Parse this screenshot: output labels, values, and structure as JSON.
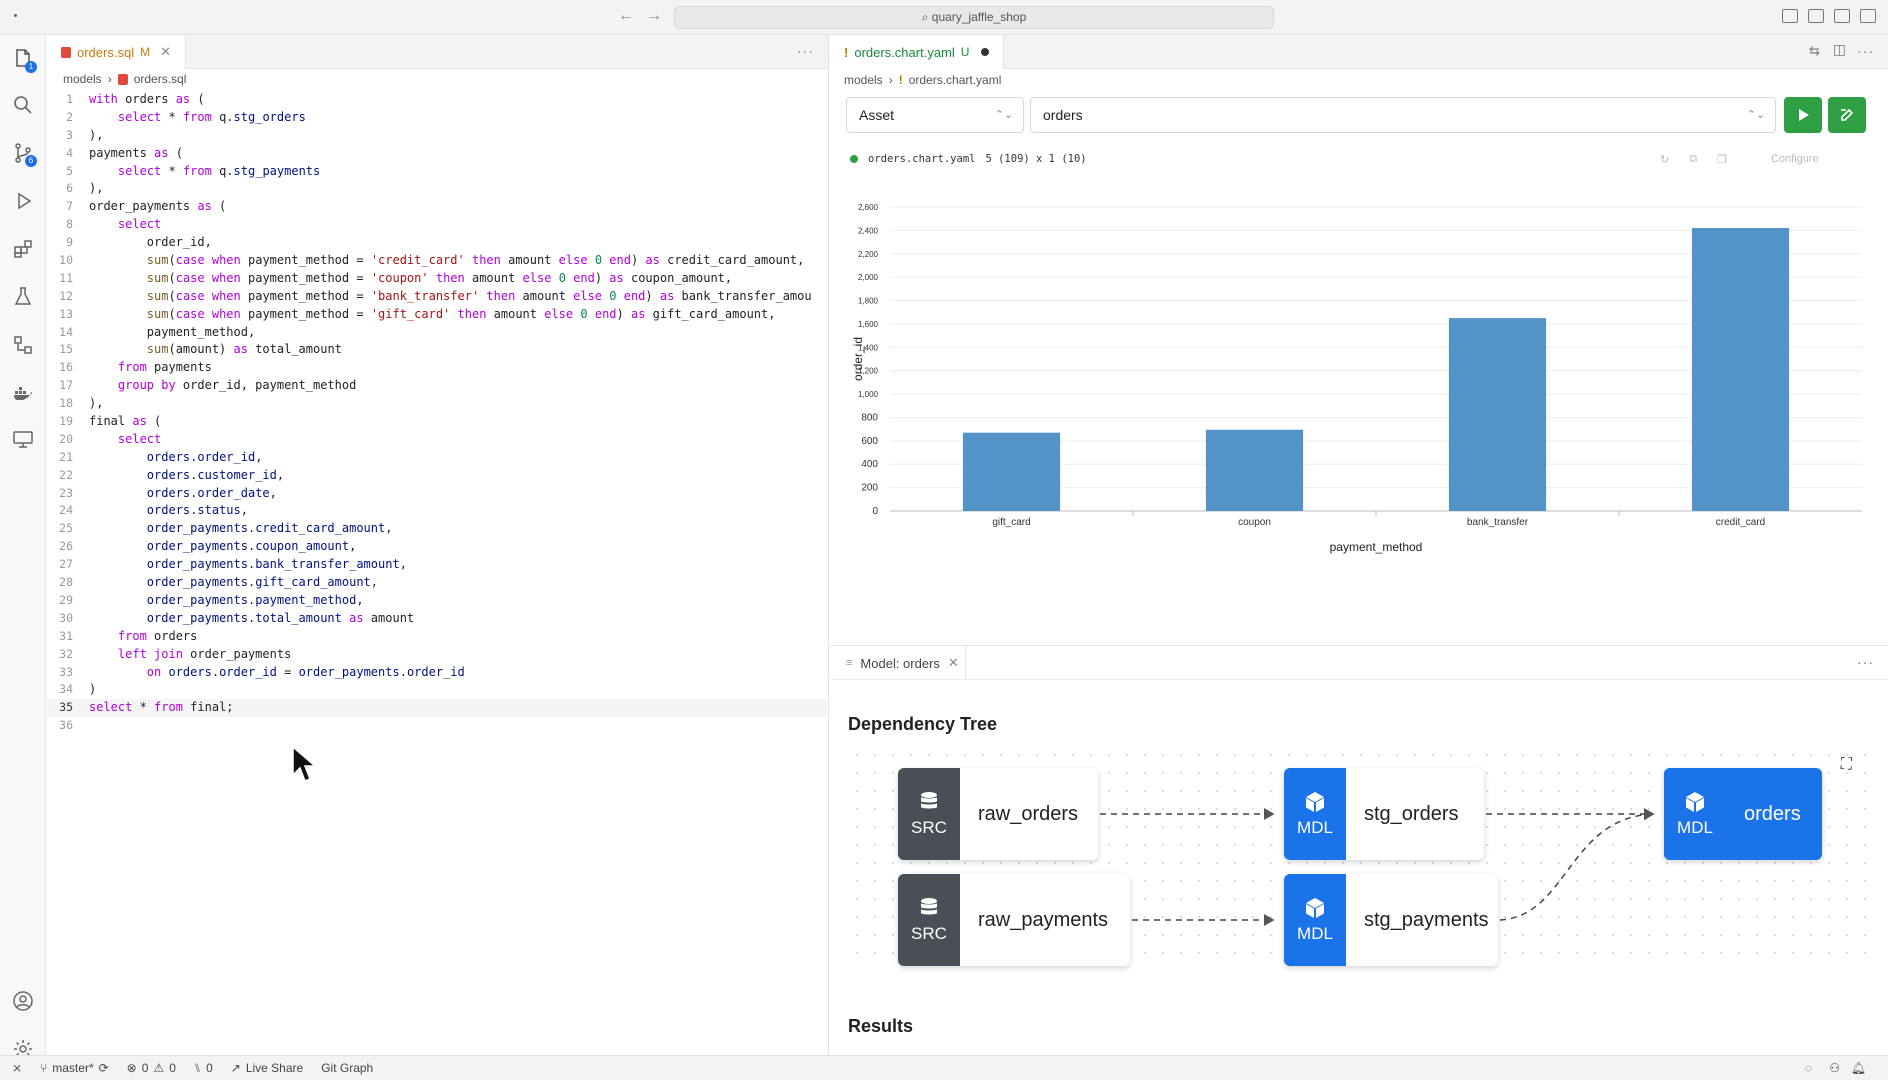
{
  "titlebar": {
    "search": "quary_jaffle_shop"
  },
  "activity": {
    "explorer_badge": "1",
    "scm_badge": "6"
  },
  "editor": {
    "tab_label": "orders.sql",
    "tab_mod": "M",
    "breadcrumb": [
      "models",
      "orders.sql"
    ],
    "current_line": 35,
    "lines": [
      [
        [
          "kw",
          "with"
        ],
        [
          "plain",
          " orders "
        ],
        [
          "kw",
          "as"
        ],
        [
          "plain",
          " ("
        ]
      ],
      [
        [
          "plain",
          "    "
        ],
        [
          "kw",
          "select"
        ],
        [
          "plain",
          " * "
        ],
        [
          "kw",
          "from"
        ],
        [
          "plain",
          " q."
        ],
        [
          "id",
          "stg_orders"
        ]
      ],
      [
        [
          "plain",
          "),"
        ]
      ],
      [
        [
          "plain",
          "payments "
        ],
        [
          "kw",
          "as"
        ],
        [
          "plain",
          " ("
        ]
      ],
      [
        [
          "plain",
          "    "
        ],
        [
          "kw",
          "select"
        ],
        [
          "plain",
          " * "
        ],
        [
          "kw",
          "from"
        ],
        [
          "plain",
          " q."
        ],
        [
          "id",
          "stg_payments"
        ]
      ],
      [
        [
          "plain",
          "),"
        ]
      ],
      [
        [
          "plain",
          "order_payments "
        ],
        [
          "kw",
          "as"
        ],
        [
          "plain",
          " ("
        ]
      ],
      [
        [
          "plain",
          "    "
        ],
        [
          "kw",
          "select"
        ]
      ],
      [
        [
          "plain",
          "        order_id,"
        ]
      ],
      [
        [
          "plain",
          "        "
        ],
        [
          "fn",
          "sum"
        ],
        [
          "plain",
          "("
        ],
        [
          "kw",
          "case"
        ],
        [
          "plain",
          " "
        ],
        [
          "kw",
          "when"
        ],
        [
          "plain",
          " payment_method = "
        ],
        [
          "str",
          "'credit_card'"
        ],
        [
          "plain",
          " "
        ],
        [
          "kw",
          "then"
        ],
        [
          "plain",
          " amount "
        ],
        [
          "kw",
          "else"
        ],
        [
          "plain",
          " "
        ],
        [
          "num",
          "0"
        ],
        [
          "plain",
          " "
        ],
        [
          "kw",
          "end"
        ],
        [
          "plain",
          ") "
        ],
        [
          "kw",
          "as"
        ],
        [
          "plain",
          " credit_card_amount,"
        ]
      ],
      [
        [
          "plain",
          "        "
        ],
        [
          "fn",
          "sum"
        ],
        [
          "plain",
          "("
        ],
        [
          "kw",
          "case"
        ],
        [
          "plain",
          " "
        ],
        [
          "kw",
          "when"
        ],
        [
          "plain",
          " payment_method = "
        ],
        [
          "str",
          "'coupon'"
        ],
        [
          "plain",
          " "
        ],
        [
          "kw",
          "then"
        ],
        [
          "plain",
          " amount "
        ],
        [
          "kw",
          "else"
        ],
        [
          "plain",
          " "
        ],
        [
          "num",
          "0"
        ],
        [
          "plain",
          " "
        ],
        [
          "kw",
          "end"
        ],
        [
          "plain",
          ") "
        ],
        [
          "kw",
          "as"
        ],
        [
          "plain",
          " coupon_amount,"
        ]
      ],
      [
        [
          "plain",
          "        "
        ],
        [
          "fn",
          "sum"
        ],
        [
          "plain",
          "("
        ],
        [
          "kw",
          "case"
        ],
        [
          "plain",
          " "
        ],
        [
          "kw",
          "when"
        ],
        [
          "plain",
          " payment_method = "
        ],
        [
          "str",
          "'bank_transfer'"
        ],
        [
          "plain",
          " "
        ],
        [
          "kw",
          "then"
        ],
        [
          "plain",
          " amount "
        ],
        [
          "kw",
          "else"
        ],
        [
          "plain",
          " "
        ],
        [
          "num",
          "0"
        ],
        [
          "plain",
          " "
        ],
        [
          "kw",
          "end"
        ],
        [
          "plain",
          ") "
        ],
        [
          "kw",
          "as"
        ],
        [
          "plain",
          " bank_transfer_amou"
        ]
      ],
      [
        [
          "plain",
          "        "
        ],
        [
          "fn",
          "sum"
        ],
        [
          "plain",
          "("
        ],
        [
          "kw",
          "case"
        ],
        [
          "plain",
          " "
        ],
        [
          "kw",
          "when"
        ],
        [
          "plain",
          " payment_method = "
        ],
        [
          "str",
          "'gift_card'"
        ],
        [
          "plain",
          " "
        ],
        [
          "kw",
          "then"
        ],
        [
          "plain",
          " amount "
        ],
        [
          "kw",
          "else"
        ],
        [
          "plain",
          " "
        ],
        [
          "num",
          "0"
        ],
        [
          "plain",
          " "
        ],
        [
          "kw",
          "end"
        ],
        [
          "plain",
          ") "
        ],
        [
          "kw",
          "as"
        ],
        [
          "plain",
          " gift_card_amount,"
        ]
      ],
      [
        [
          "plain",
          "        payment_method,"
        ]
      ],
      [
        [
          "plain",
          "        "
        ],
        [
          "fn",
          "sum"
        ],
        [
          "plain",
          "(amount) "
        ],
        [
          "kw",
          "as"
        ],
        [
          "plain",
          " total_amount"
        ]
      ],
      [
        [
          "plain",
          "    "
        ],
        [
          "kw",
          "from"
        ],
        [
          "plain",
          " payments"
        ]
      ],
      [
        [
          "plain",
          "    "
        ],
        [
          "kw",
          "group by"
        ],
        [
          "plain",
          " order_id, payment_method"
        ]
      ],
      [
        [
          "plain",
          "),"
        ]
      ],
      [
        [
          "plain",
          "final "
        ],
        [
          "kw",
          "as"
        ],
        [
          "plain",
          " ("
        ]
      ],
      [
        [
          "plain",
          "    "
        ],
        [
          "kw",
          "select"
        ]
      ],
      [
        [
          "plain",
          "        "
        ],
        [
          "id",
          "orders"
        ],
        [
          "plain",
          "."
        ],
        [
          "id",
          "order_id"
        ],
        [
          "plain",
          ","
        ]
      ],
      [
        [
          "plain",
          "        "
        ],
        [
          "id",
          "orders"
        ],
        [
          "plain",
          "."
        ],
        [
          "id",
          "customer_id"
        ],
        [
          "plain",
          ","
        ]
      ],
      [
        [
          "plain",
          "        "
        ],
        [
          "id",
          "orders"
        ],
        [
          "plain",
          "."
        ],
        [
          "id",
          "order_date"
        ],
        [
          "plain",
          ","
        ]
      ],
      [
        [
          "plain",
          "        "
        ],
        [
          "id",
          "orders"
        ],
        [
          "plain",
          "."
        ],
        [
          "id",
          "status"
        ],
        [
          "plain",
          ","
        ]
      ],
      [
        [
          "plain",
          "        "
        ],
        [
          "id",
          "order_payments"
        ],
        [
          "plain",
          "."
        ],
        [
          "id",
          "credit_card_amount"
        ],
        [
          "plain",
          ","
        ]
      ],
      [
        [
          "plain",
          "        "
        ],
        [
          "id",
          "order_payments"
        ],
        [
          "plain",
          "."
        ],
        [
          "id",
          "coupon_amount"
        ],
        [
          "plain",
          ","
        ]
      ],
      [
        [
          "plain",
          "        "
        ],
        [
          "id",
          "order_payments"
        ],
        [
          "plain",
          "."
        ],
        [
          "id",
          "bank_transfer_amount"
        ],
        [
          "plain",
          ","
        ]
      ],
      [
        [
          "plain",
          "        "
        ],
        [
          "id",
          "order_payments"
        ],
        [
          "plain",
          "."
        ],
        [
          "id",
          "gift_card_amount"
        ],
        [
          "plain",
          ","
        ]
      ],
      [
        [
          "plain",
          "        "
        ],
        [
          "id",
          "order_payments"
        ],
        [
          "plain",
          "."
        ],
        [
          "id",
          "payment_method"
        ],
        [
          "plain",
          ","
        ]
      ],
      [
        [
          "plain",
          "        "
        ],
        [
          "id",
          "order_payments"
        ],
        [
          "plain",
          "."
        ],
        [
          "id",
          "total_amount"
        ],
        [
          "plain",
          " "
        ],
        [
          "kw",
          "as"
        ],
        [
          "plain",
          " amount"
        ]
      ],
      [
        [
          "plain",
          "    "
        ],
        [
          "kw",
          "from"
        ],
        [
          "plain",
          " orders"
        ]
      ],
      [
        [
          "plain",
          "    "
        ],
        [
          "kw",
          "left join"
        ],
        [
          "plain",
          " order_payments"
        ]
      ],
      [
        [
          "plain",
          "        "
        ],
        [
          "kw",
          "on"
        ],
        [
          "plain",
          " "
        ],
        [
          "id",
          "orders"
        ],
        [
          "plain",
          "."
        ],
        [
          "id",
          "order_id"
        ],
        [
          "plain",
          " = "
        ],
        [
          "id",
          "order_payments"
        ],
        [
          "plain",
          "."
        ],
        [
          "id",
          "order_id"
        ]
      ],
      [
        [
          "plain",
          ")"
        ]
      ],
      [
        [
          "kw",
          "select"
        ],
        [
          "plain",
          " * "
        ],
        [
          "kw",
          "from"
        ],
        [
          "plain",
          " final;"
        ]
      ],
      [
        [
          "plain",
          ""
        ]
      ]
    ]
  },
  "right": {
    "tab_label": "orders.chart.yaml",
    "tab_mod": "U",
    "breadcrumb": [
      "models",
      "orders.chart.yaml"
    ],
    "select_type": "Asset",
    "select_asset": "orders",
    "chart_file": "orders.chart.yaml",
    "chart_size": "5 (109) x 1 (10)",
    "configure": "Configure"
  },
  "chart_data": {
    "type": "bar",
    "categories": [
      "gift_card",
      "coupon",
      "bank_transfer",
      "credit_card"
    ],
    "values": [
      670,
      695,
      1650,
      2420
    ],
    "xlabel": "payment_method",
    "ylabel": "order_id",
    "ylim": [
      0,
      2600
    ],
    "yticks": [
      0,
      200,
      400,
      600,
      800,
      1000,
      1200,
      1400,
      1600,
      1800,
      2000,
      2200,
      2400,
      2600
    ],
    "color": "#5393c8",
    "grid": true
  },
  "panel": {
    "tab_label": "Model: orders",
    "dep_title": "Dependency Tree",
    "results_title": "Results",
    "nodes": [
      {
        "kind": "SRC",
        "name": "raw_orders"
      },
      {
        "kind": "SRC",
        "name": "raw_payments"
      },
      {
        "kind": "MDL",
        "name": "stg_orders"
      },
      {
        "kind": "MDL",
        "name": "stg_payments"
      },
      {
        "kind": "MDL",
        "name": "orders"
      }
    ]
  },
  "status": {
    "branch": "master*",
    "errors": "0",
    "warnings": "0",
    "ports": "0",
    "liveshare": "Live Share",
    "gitgraph": "Git Graph"
  }
}
